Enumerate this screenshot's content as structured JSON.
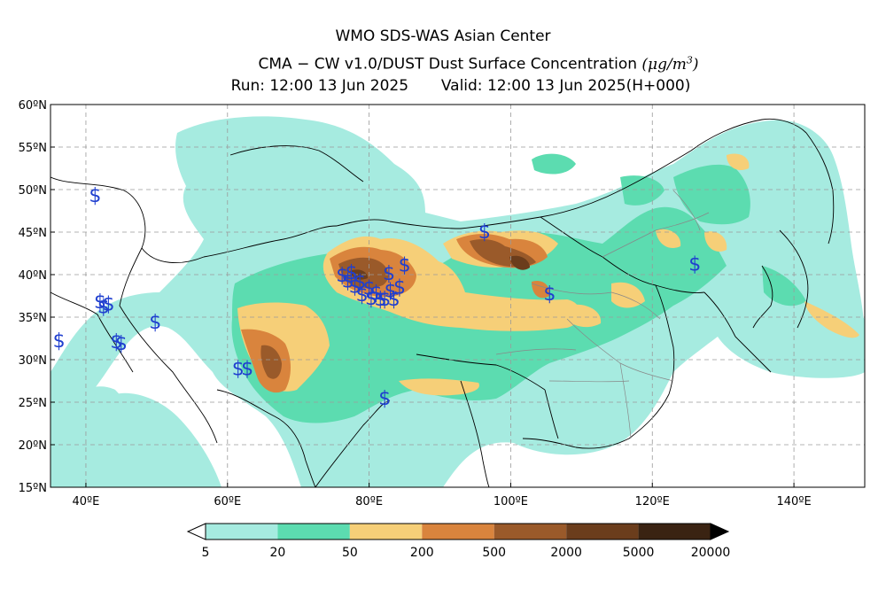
{
  "header": {
    "line1": "WMO SDS-WAS Asian Center",
    "line2_prefix": "CMA",
    "line2_dash": "−",
    "line2_model": "CW v1.0/DUST Dust Surface Concentration",
    "line2_unit": "(μg/m",
    "line2_unit_sup": "3",
    "line2_unit_close": ")",
    "run": "Run: 12:00 13 Jun 2025",
    "valid": "Valid: 12:00 13 Jun 2025(H+000)"
  },
  "map": {
    "lon_range": [
      35,
      150
    ],
    "lat_range": [
      15,
      60
    ],
    "lat_labels": [
      "15ºN",
      "20ºN",
      "25ºN",
      "30ºN",
      "35ºN",
      "40ºN",
      "45ºN",
      "50ºN",
      "55ºN",
      "60ºN"
    ],
    "lon_labels": [
      "40ºE",
      "60ºE",
      "80ºE",
      "100ºE",
      "120ºE",
      "140ºE"
    ],
    "lat_values": [
      15,
      20,
      25,
      30,
      35,
      40,
      45,
      50,
      55,
      60
    ],
    "lon_values": [
      40,
      60,
      80,
      100,
      120,
      140
    ],
    "gridlines": true,
    "dust_storm_symbol": "$",
    "dust_storm_color": "#1f3fcf",
    "dust_storm_stations": [
      {
        "lon": 41.3,
        "lat": 49.4
      },
      {
        "lon": 42.0,
        "lat": 36.9
      },
      {
        "lon": 42.5,
        "lat": 36.3
      },
      {
        "lon": 43.2,
        "lat": 36.6
      },
      {
        "lon": 36.2,
        "lat": 32.3
      },
      {
        "lon": 44.3,
        "lat": 32.2
      },
      {
        "lon": 45.0,
        "lat": 32.0
      },
      {
        "lon": 49.8,
        "lat": 34.5
      },
      {
        "lon": 61.5,
        "lat": 29.0
      },
      {
        "lon": 62.8,
        "lat": 29.0
      },
      {
        "lon": 76.2,
        "lat": 40.0
      },
      {
        "lon": 77.0,
        "lat": 39.3
      },
      {
        "lon": 78.0,
        "lat": 38.7
      },
      {
        "lon": 78.7,
        "lat": 39.2
      },
      {
        "lon": 79.0,
        "lat": 37.7
      },
      {
        "lon": 80.3,
        "lat": 37.3
      },
      {
        "lon": 81.0,
        "lat": 37.9
      },
      {
        "lon": 81.6,
        "lat": 37.2
      },
      {
        "lon": 82.2,
        "lat": 37.2
      },
      {
        "lon": 83.0,
        "lat": 38.2
      },
      {
        "lon": 83.5,
        "lat": 37.2
      },
      {
        "lon": 84.3,
        "lat": 38.6
      },
      {
        "lon": 82.8,
        "lat": 40.2
      },
      {
        "lon": 85.0,
        "lat": 41.2
      },
      {
        "lon": 77.5,
        "lat": 40.3
      },
      {
        "lon": 96.3,
        "lat": 45.1
      },
      {
        "lon": 105.5,
        "lat": 37.8
      },
      {
        "lon": 82.2,
        "lat": 25.5
      },
      {
        "lon": 126.0,
        "lat": 41.3
      },
      {
        "lon": 80.0,
        "lat": 38.5
      }
    ]
  },
  "legend": {
    "boundaries": [
      "5",
      "20",
      "50",
      "200",
      "500",
      "2000",
      "5000",
      "20000"
    ],
    "colors": [
      "#a6ebe0",
      "#5cdcb0",
      "#f6cf78",
      "#d9843d",
      "#9a5a2a",
      "#6b3d1c",
      "#3a2312"
    ]
  },
  "colors": {
    "level1": "#a6ebe0",
    "level2": "#5cdcb0",
    "level3": "#f6cf78",
    "level4": "#d9843d",
    "level5": "#9a5a2a",
    "level6": "#6b3d1c",
    "coast": "#000000",
    "province": "#888888",
    "grid": "#9a9a9a"
  }
}
